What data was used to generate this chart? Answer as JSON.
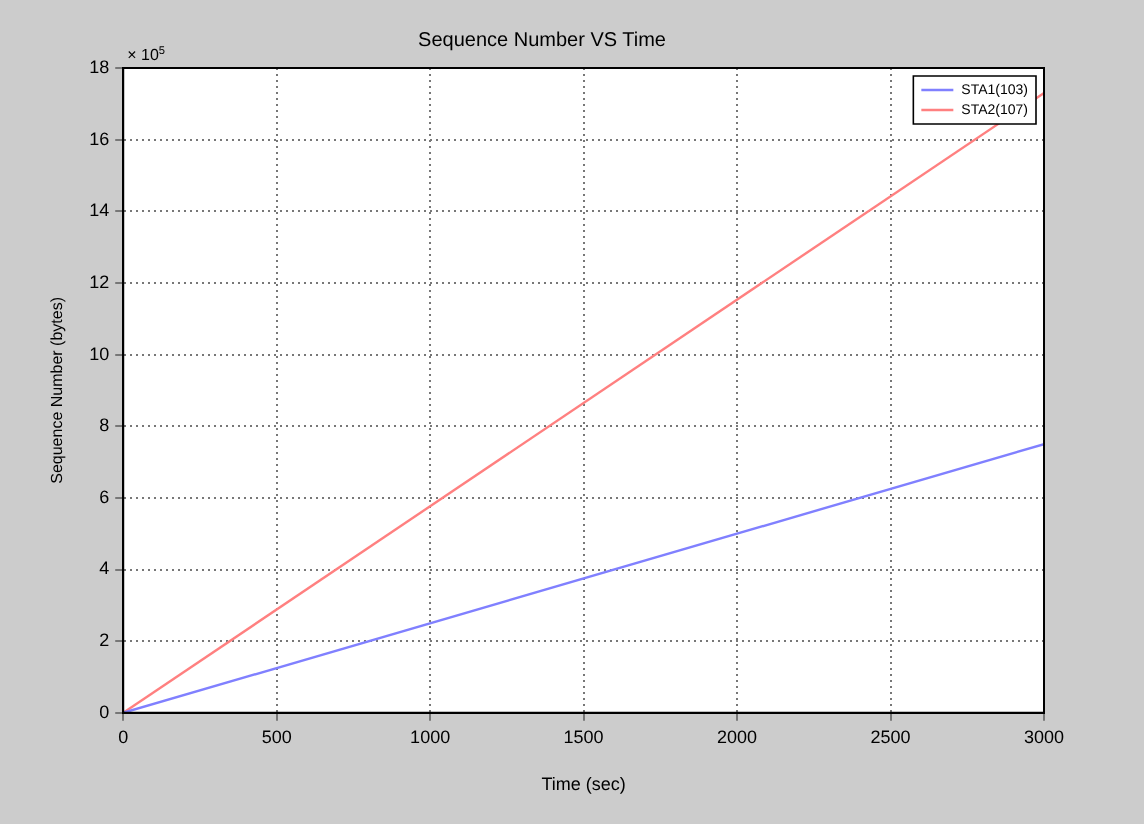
{
  "chart_data": {
    "type": "line",
    "title": "Sequence Number VS Time",
    "xlabel": "Time (sec)",
    "ylabel": "Sequence Number (bytes)",
    "annotations": [
      "× 10$^{5}$"
    ],
    "x": [
      0,
      3000
    ],
    "series": [
      {
        "name": "STA1(103)",
        "color": "#8080ff",
        "values": [
          0,
          7.5
        ]
      },
      {
        "name": "STA2(107)",
        "color": "#ff8080",
        "values": [
          0,
          17.3
        ]
      }
    ],
    "xlim": [
      0,
      3000
    ],
    "xticks": [
      0,
      500,
      1000,
      1500,
      2000,
      2500,
      3000
    ],
    "ylim": [
      0,
      18
    ],
    "yticks": [
      0,
      2,
      4,
      6,
      8,
      10,
      12,
      14,
      16,
      18
    ],
    "grid": true,
    "legend": "top right",
    "marker": "none",
    "line_style": "solid"
  }
}
